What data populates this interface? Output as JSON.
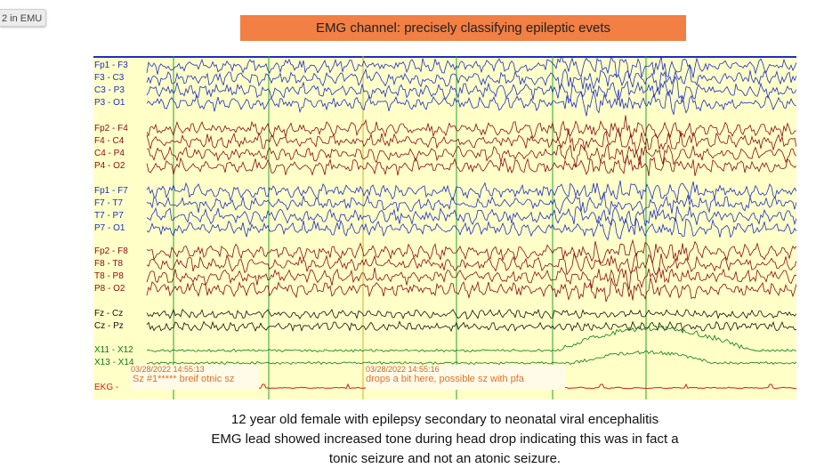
{
  "tab": {
    "label": "2 in EMU"
  },
  "title": "EMG channel:  precisely classifying epileptic  evets",
  "channels": [
    {
      "label": "Fp1 - F3",
      "group": "blue"
    },
    {
      "label": "F3 - C3",
      "group": "blue"
    },
    {
      "label": "C3 - P3",
      "group": "blue"
    },
    {
      "label": "P3 - O1",
      "group": "blue"
    },
    {
      "label": "Fp2 - F4",
      "group": "red"
    },
    {
      "label": "F4 - C4",
      "group": "red"
    },
    {
      "label": "C4 - P4",
      "group": "red"
    },
    {
      "label": "P4 - O2",
      "group": "red"
    },
    {
      "label": "Fp1 - F7",
      "group": "blue"
    },
    {
      "label": "F7 - T7",
      "group": "blue"
    },
    {
      "label": "T7 - P7",
      "group": "blue"
    },
    {
      "label": "P7 - O1",
      "group": "blue"
    },
    {
      "label": "Fp2 - F8",
      "group": "red"
    },
    {
      "label": "F8 - T8",
      "group": "red"
    },
    {
      "label": "T8 - P8",
      "group": "red"
    },
    {
      "label": "P8 - O2",
      "group": "red"
    },
    {
      "label": "Fz - Cz",
      "group": "black"
    },
    {
      "label": "Cz - Pz",
      "group": "black"
    },
    {
      "label": "X11 - X12",
      "group": "green"
    },
    {
      "label": "X13 - X14",
      "group": "green"
    },
    {
      "label": "EKG -",
      "group": "ekg"
    }
  ],
  "colors": {
    "blue": "#1d2fc4",
    "red": "#8a0c14",
    "black": "#111111",
    "green": "#0c7a18",
    "ekg": "#d31f1f",
    "grid": "#2aa02a",
    "background": "#ffffc8",
    "title_bg": "#f27f43",
    "annotation": "#e0742a"
  },
  "annotations": [
    {
      "timestamp": "03/28/2022 14:55:13",
      "text": "Sz #1***** breif otnic sz"
    },
    {
      "timestamp": "03/28/2022 14:55:16",
      "text": "drops a bit here, possible sz with pfa"
    }
  ],
  "caption": {
    "line1": "12 year old female with  epilepsy secondary to neonatal viral encephalitis",
    "line2": "EMG lead showed increased tone during head drop indicating this was in fact a",
    "line3": "tonic seizure and not an atonic seizure."
  }
}
